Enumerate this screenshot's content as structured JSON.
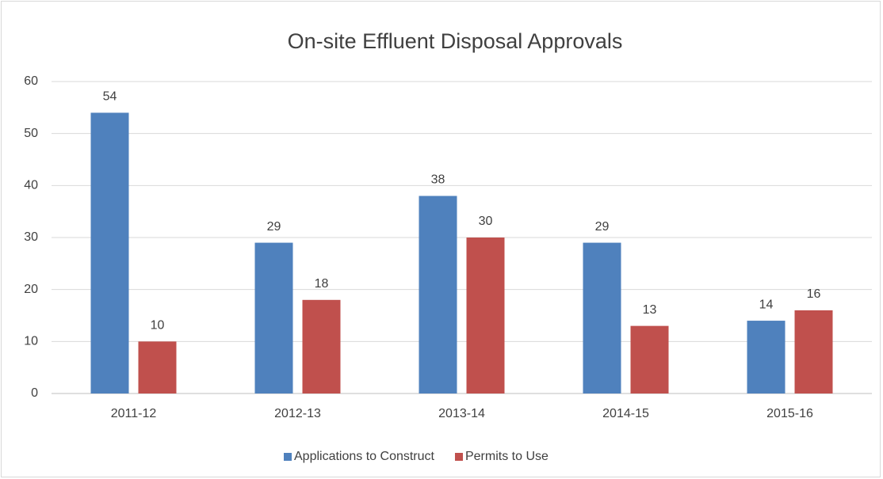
{
  "chart_data": {
    "type": "bar",
    "title": "On-site Effluent Disposal Approvals",
    "categories": [
      "2011-12",
      "2012-13",
      "2013-14",
      "2014-15",
      "2015-16"
    ],
    "series": [
      {
        "name": "Applications to Construct",
        "color": "#4f81bd",
        "values": [
          54,
          29,
          38,
          29,
          14
        ]
      },
      {
        "name": "Permits to Use",
        "color": "#c0504d",
        "values": [
          10,
          18,
          30,
          13,
          16
        ]
      }
    ],
    "ylim": [
      0,
      60
    ],
    "yticks": [
      0,
      10,
      20,
      30,
      40,
      50,
      60
    ],
    "grid": true,
    "legend": "bottom"
  }
}
